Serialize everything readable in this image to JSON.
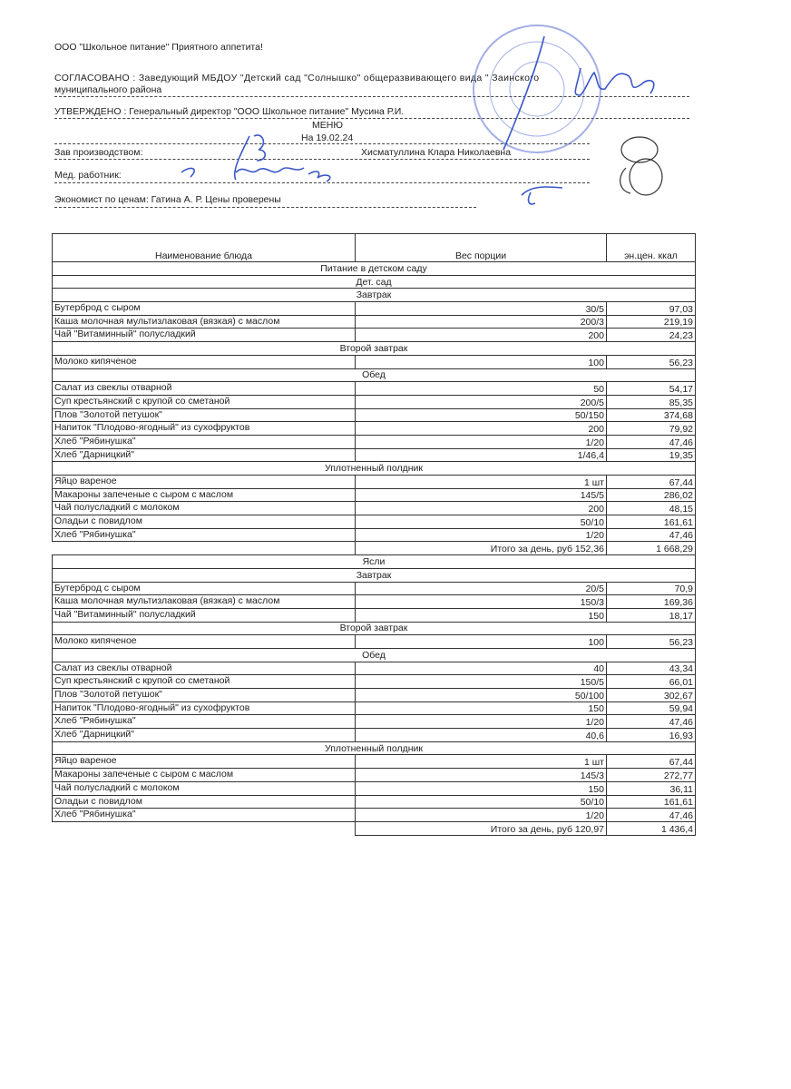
{
  "header": {
    "company": "ООО \"Школьное питание\" Приятного аппетита!",
    "agreed_line1": "СОГЛАСОВАНО : Заведующий МБДОУ \"Детский сад \"Солнышко\" общеразвивающего вида \" Заинского",
    "agreed_line2": "муниципального района",
    "approved": "УТВЕРЖДЕНО : Генеральный директор \"ООО Школьное питание\" Мусина Р.И.",
    "title": "МЕНЮ",
    "date": "На 19.02.24",
    "production_label": "Зав производством:",
    "production_name": "Хисматуллина Клара Николаевна",
    "medic_label": "Мед. работник:",
    "economist": "Экономист по ценам: Гатина А. Р.   Цены проверены"
  },
  "table": {
    "columns": [
      "Наименование блюда",
      "Вес порции",
      "эн.цен. ккал"
    ],
    "rows": [
      {
        "section": "Питание в детском саду"
      },
      {
        "section": "Дет. сад"
      },
      {
        "section": "Завтрак"
      },
      {
        "name": "Бутерброд с сыром",
        "weight": "30/5",
        "kcal": "97,03"
      },
      {
        "name": "Каша молочная мультизлаковая (вязкая) с маслом",
        "weight": "200/3",
        "kcal": "219,19"
      },
      {
        "name": "Чай \"Витаминный\" полусладкий",
        "weight": "200",
        "kcal": "24,23"
      },
      {
        "section": "Второй завтрак"
      },
      {
        "name": "Молоко кипяченое",
        "weight": "100",
        "kcal": "56,23"
      },
      {
        "section": "Обед"
      },
      {
        "name": "Салат из свеклы отварной",
        "weight": "50",
        "kcal": "54,17"
      },
      {
        "name": "Суп крестьянский с крупой со сметаной",
        "weight": "200/5",
        "kcal": "85,35"
      },
      {
        "name": "Плов \"Золотой петушок\"",
        "weight": "50/150",
        "kcal": "374,68"
      },
      {
        "name": "Напиток \"Плодово-ягодный\" из сухофруктов",
        "weight": "200",
        "kcal": "79,92"
      },
      {
        "name": "Хлеб \"Рябинушка\"",
        "weight": "1/20",
        "kcal": "47,46"
      },
      {
        "name": "Хлеб \"Дарницкий\"",
        "weight": "1/46,4",
        "kcal": "19,35"
      },
      {
        "section": "Уплотненный полдник"
      },
      {
        "name": "Яйцо вареное",
        "weight": "1 шт",
        "kcal": "67,44"
      },
      {
        "name": "Макароны запеченые с сыром с маслом",
        "weight": "145/5",
        "kcal": "286,02"
      },
      {
        "name": "Чай полусладкий с молоком",
        "weight": "200",
        "kcal": "48,15"
      },
      {
        "name": "Оладьи с повидлом",
        "weight": "50/10",
        "kcal": "161,61"
      },
      {
        "name": "Хлеб \"Рябинушка\"",
        "weight": "1/20",
        "kcal": "47,46"
      },
      {
        "total": "Итого за день, руб 152,36",
        "kcal": "1 668,29"
      },
      {
        "section": "Ясли"
      },
      {
        "section": "Завтрак"
      },
      {
        "name": "Бутерброд с сыром",
        "weight": "20/5",
        "kcal": "70,9"
      },
      {
        "name": "Каша молочная мультизлаковая (вязкая) с маслом",
        "weight": "150/3",
        "kcal": "169,36"
      },
      {
        "name": "Чай \"Витаминный\" полусладкий",
        "weight": "150",
        "kcal": "18,17"
      },
      {
        "section": "Второй завтрак"
      },
      {
        "name": "Молоко кипяченое",
        "weight": "100",
        "kcal": "56,23"
      },
      {
        "section": "Обед"
      },
      {
        "name": "Салат из свеклы отварной",
        "weight": "40",
        "kcal": "43,34"
      },
      {
        "name": "Суп крестьянский с крупой со сметаной",
        "weight": "150/5",
        "kcal": "66,01"
      },
      {
        "name": "Плов \"Золотой петушок\"",
        "weight": "50/100",
        "kcal": "302,67"
      },
      {
        "name": "Напиток \"Плодово-ягодный\" из сухофруктов",
        "weight": "150",
        "kcal": "59,94"
      },
      {
        "name": "Хлеб \"Рябинушка\"",
        "weight": "1/20",
        "kcal": "47,46"
      },
      {
        "name": "Хлеб \"Дарницкий\"",
        "weight": "40,6",
        "kcal": "16,93"
      },
      {
        "section": "Уплотненный полдник"
      },
      {
        "name": "Яйцо вареное",
        "weight": "1 шт",
        "kcal": "67,44"
      },
      {
        "name": "Макароны запеченые с сыром с маслом",
        "weight": "145/3",
        "kcal": "272,77"
      },
      {
        "name": "Чай полусладкий с молоком",
        "weight": "150",
        "kcal": "36,11"
      },
      {
        "name": "Оладьи с повидлом",
        "weight": "50/10",
        "kcal": "161,61"
      },
      {
        "name": "Хлеб \"Рябинушка\"",
        "weight": "1/20",
        "kcal": "47,46"
      },
      {
        "total": "Итого за день, руб 120,97",
        "kcal": "1 436,4"
      }
    ]
  },
  "colors": {
    "ink": "#222222",
    "stamp": "#5a6fd0",
    "signature": "#3b58c8"
  }
}
